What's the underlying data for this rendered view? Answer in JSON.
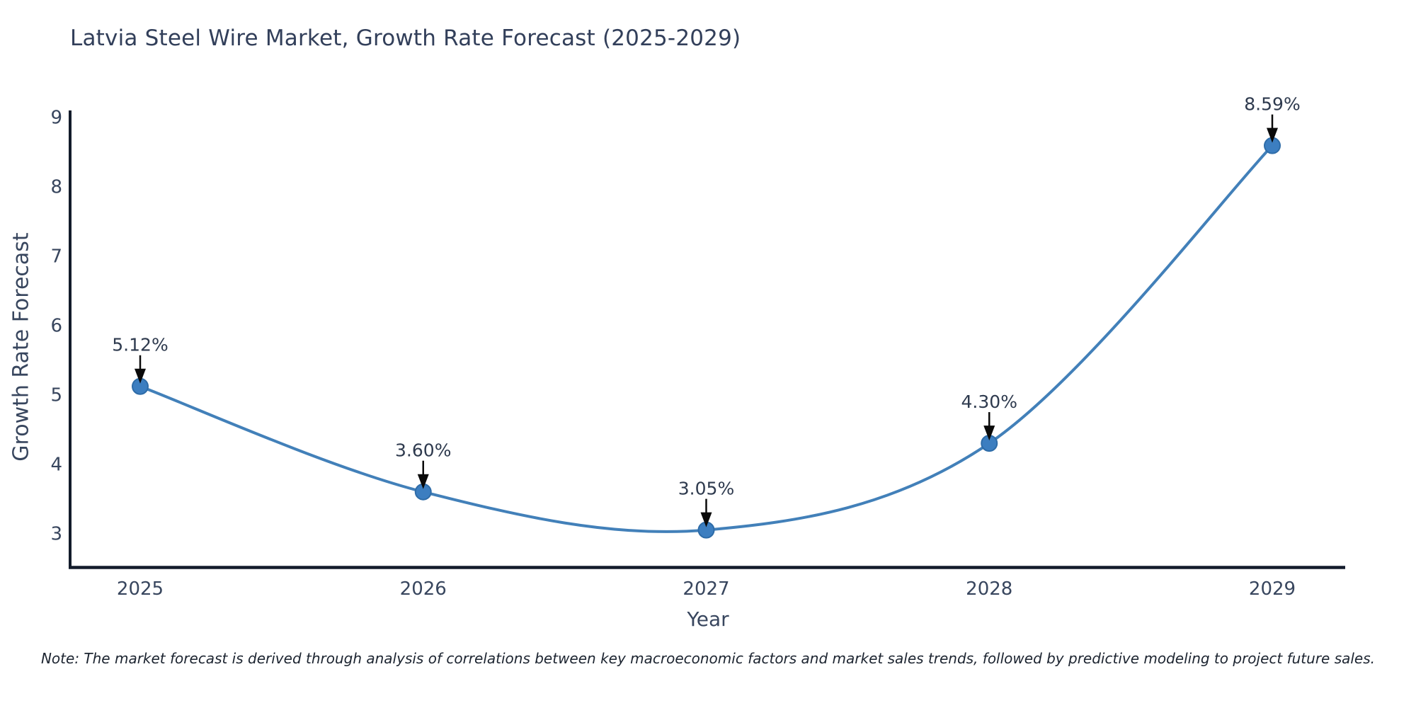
{
  "title": "Latvia Steel Wire Market, Growth Rate Forecast (2025-2029)",
  "note": "Note: The market forecast is derived through analysis of correlations between key macroeconomic factors and market sales trends, followed by predictive modeling to project future sales.",
  "chart_data": {
    "type": "line",
    "title": "Latvia Steel Wire Market, Growth Rate Forecast (2025-2029)",
    "x": [
      "2025",
      "2026",
      "2027",
      "2028",
      "2029"
    ],
    "values": [
      5.12,
      3.6,
      3.05,
      4.3,
      8.59
    ],
    "point_labels": [
      "5.12%",
      "3.60%",
      "3.05%",
      "4.30%",
      "8.59%"
    ],
    "xlabel": "Year",
    "ylabel": "Growth Rate Forecast",
    "yticks": [
      3,
      4,
      5,
      6,
      7,
      8,
      9
    ],
    "ylim": [
      2.5,
      9.1
    ],
    "grid": false,
    "legend": "none",
    "smooth": true,
    "annotation_style": "value label with downward arrow to each marker",
    "colors": {
      "line": "#4280b9",
      "marker": "#3c7ec0",
      "marker_edge": "#2e6ca8",
      "axis": "#131c2b",
      "tick_text": "#38465e",
      "title_text": "#323f5a",
      "annotation_arrow": "#0a0a0a",
      "background": "#ffffff"
    }
  }
}
